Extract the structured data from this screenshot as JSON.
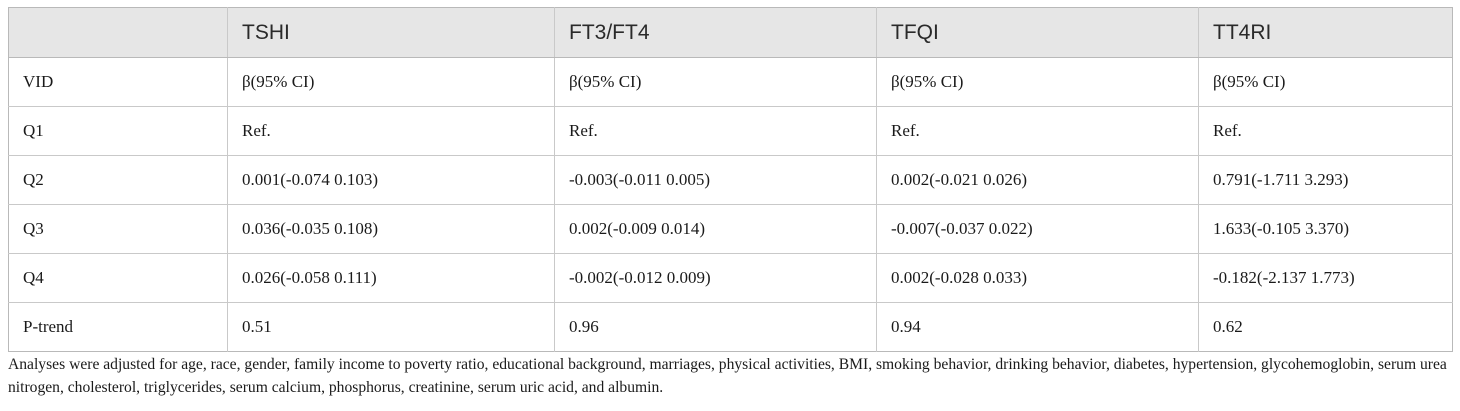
{
  "table": {
    "headers": [
      "",
      "TSHI",
      "FT3/FT4",
      "TFQI",
      "TT4RI"
    ],
    "rows": [
      [
        "VID",
        "β(95% CI)",
        "β(95% CI)",
        "β(95% CI)",
        "β(95% CI)"
      ],
      [
        "Q1",
        "Ref.",
        "Ref.",
        "Ref.",
        "Ref."
      ],
      [
        "Q2",
        "0.001(-0.074 0.103)",
        "-0.003(-0.011 0.005)",
        "0.002(-0.021 0.026)",
        "0.791(-1.711 3.293)"
      ],
      [
        "Q3",
        "0.036(-0.035 0.108)",
        "0.002(-0.009 0.014)",
        "-0.007(-0.037 0.022)",
        "1.633(-0.105 3.370)"
      ],
      [
        "Q4",
        "0.026(-0.058 0.111)",
        "-0.002(-0.012 0.009)",
        "0.002(-0.028 0.033)",
        "-0.182(-2.137 1.773)"
      ],
      [
        "P-trend",
        "0.51",
        "0.96",
        "0.94",
        "0.62"
      ]
    ]
  },
  "footnote": "Analyses were adjusted for age, race, gender, family income to poverty ratio, educational background, marriages, physical activities, BMI, smoking behavior, drinking behavior, diabetes, hypertension, glycohemoglobin, serum urea nitrogen, cholesterol, triglycerides, serum calcium, phosphorus, creatinine, serum uric acid, and albumin.",
  "colors": {
    "header_bg": "#e6e6e6",
    "border": "#c9c9c9"
  }
}
